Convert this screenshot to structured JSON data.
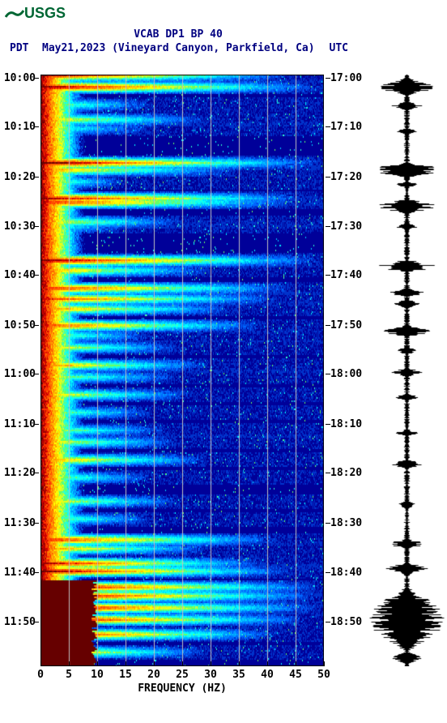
{
  "logo_text": "USGS",
  "title": "VCAB DP1 BP 40",
  "left_tz": "PDT",
  "subtitle": "May21,2023 (Vineyard Canyon, Parkfield, Ca)",
  "right_tz": "UTC",
  "x_label": "FREQUENCY (HZ)",
  "spectrogram": {
    "xlim": [
      0,
      50
    ],
    "xticks": [
      0,
      5,
      10,
      15,
      20,
      25,
      30,
      35,
      40,
      45,
      50
    ],
    "left_labels": [
      "10:00",
      "10:10",
      "10:20",
      "10:30",
      "10:40",
      "10:50",
      "11:00",
      "11:10",
      "11:20",
      "11:30",
      "11:40",
      "11:50"
    ],
    "left_positions": [
      0.005,
      0.088,
      0.172,
      0.256,
      0.339,
      0.423,
      0.506,
      0.59,
      0.673,
      0.757,
      0.841,
      0.924
    ],
    "right_labels": [
      "17:00",
      "17:10",
      "17:20",
      "17:30",
      "17:40",
      "17:50",
      "18:00",
      "18:10",
      "18:20",
      "18:30",
      "18:40",
      "18:50"
    ],
    "right_positions": [
      0.005,
      0.088,
      0.172,
      0.256,
      0.339,
      0.423,
      0.506,
      0.59,
      0.673,
      0.757,
      0.841,
      0.924
    ],
    "colormap": [
      "#660000",
      "#990000",
      "#cc0000",
      "#ff3300",
      "#ff6600",
      "#ff9900",
      "#ffcc00",
      "#ffff00",
      "#ccff33",
      "#66ff66",
      "#33ffcc",
      "#00ffff",
      "#00ccff",
      "#0099ff",
      "#0066ff",
      "#0033cc",
      "#000099",
      "#000066"
    ],
    "background_color": "#000099",
    "grid_color": "#c0c0c0",
    "event_rows": [
      {
        "y": 0.0,
        "intensity": 0.9,
        "width": 0.9
      },
      {
        "y": 0.02,
        "intensity": 0.95,
        "width": 1.0
      },
      {
        "y": 0.05,
        "intensity": 0.5,
        "width": 0.4
      },
      {
        "y": 0.075,
        "intensity": 0.6,
        "width": 0.6
      },
      {
        "y": 0.09,
        "intensity": 0.4,
        "width": 0.4
      },
      {
        "y": 0.148,
        "intensity": 0.95,
        "width": 1.0
      },
      {
        "y": 0.16,
        "intensity": 0.7,
        "width": 0.7
      },
      {
        "y": 0.18,
        "intensity": 0.5,
        "width": 0.3
      },
      {
        "y": 0.208,
        "intensity": 0.9,
        "width": 0.95
      },
      {
        "y": 0.215,
        "intensity": 0.85,
        "width": 0.9
      },
      {
        "y": 0.248,
        "intensity": 0.6,
        "width": 0.5
      },
      {
        "y": 0.256,
        "intensity": 0.4,
        "width": 0.3
      },
      {
        "y": 0.313,
        "intensity": 0.95,
        "width": 1.0
      },
      {
        "y": 0.33,
        "intensity": 0.7,
        "width": 0.6
      },
      {
        "y": 0.36,
        "intensity": 0.85,
        "width": 0.9
      },
      {
        "y": 0.378,
        "intensity": 0.8,
        "width": 0.85
      },
      {
        "y": 0.395,
        "intensity": 0.7,
        "width": 0.7
      },
      {
        "y": 0.423,
        "intensity": 0.8,
        "width": 0.8
      },
      {
        "y": 0.44,
        "intensity": 0.5,
        "width": 0.4
      },
      {
        "y": 0.46,
        "intensity": 0.6,
        "width": 0.5
      },
      {
        "y": 0.49,
        "intensity": 0.7,
        "width": 0.6
      },
      {
        "y": 0.51,
        "intensity": 0.5,
        "width": 0.5
      },
      {
        "y": 0.54,
        "intensity": 0.6,
        "width": 0.55
      },
      {
        "y": 0.57,
        "intensity": 0.5,
        "width": 0.4
      },
      {
        "y": 0.6,
        "intensity": 0.5,
        "width": 0.45
      },
      {
        "y": 0.62,
        "intensity": 0.6,
        "width": 0.5
      },
      {
        "y": 0.65,
        "intensity": 0.7,
        "width": 0.6
      },
      {
        "y": 0.68,
        "intensity": 0.5,
        "width": 0.4
      },
      {
        "y": 0.72,
        "intensity": 0.6,
        "width": 0.5
      },
      {
        "y": 0.75,
        "intensity": 0.5,
        "width": 0.4
      },
      {
        "y": 0.785,
        "intensity": 0.85,
        "width": 0.85
      },
      {
        "y": 0.8,
        "intensity": 0.7,
        "width": 0.6
      },
      {
        "y": 0.825,
        "intensity": 0.9,
        "width": 0.8
      },
      {
        "y": 0.838,
        "intensity": 0.95,
        "width": 0.9
      },
      {
        "y": 0.865,
        "intensity": 0.98,
        "width": 1.0
      },
      {
        "y": 0.88,
        "intensity": 0.98,
        "width": 1.0
      },
      {
        "y": 0.9,
        "intensity": 0.98,
        "width": 1.0
      },
      {
        "y": 0.92,
        "intensity": 0.95,
        "width": 0.95
      },
      {
        "y": 0.945,
        "intensity": 0.9,
        "width": 0.85
      },
      {
        "y": 0.975,
        "intensity": 0.7,
        "width": 0.6
      }
    ]
  },
  "waveform": {
    "color": "#000000",
    "bursts": [
      {
        "y": 0.005,
        "amp": 0.7,
        "len": 0.03
      },
      {
        "y": 0.045,
        "amp": 0.4,
        "len": 0.015
      },
      {
        "y": 0.09,
        "amp": 0.3,
        "len": 0.01
      },
      {
        "y": 0.148,
        "amp": 0.9,
        "len": 0.025
      },
      {
        "y": 0.18,
        "amp": 0.3,
        "len": 0.01
      },
      {
        "y": 0.21,
        "amp": 0.8,
        "len": 0.025
      },
      {
        "y": 0.25,
        "amp": 0.35,
        "len": 0.012
      },
      {
        "y": 0.313,
        "amp": 0.8,
        "len": 0.02
      },
      {
        "y": 0.36,
        "amp": 0.5,
        "len": 0.015
      },
      {
        "y": 0.38,
        "amp": 0.45,
        "len": 0.015
      },
      {
        "y": 0.423,
        "amp": 0.6,
        "len": 0.02
      },
      {
        "y": 0.46,
        "amp": 0.35,
        "len": 0.012
      },
      {
        "y": 0.495,
        "amp": 0.4,
        "len": 0.015
      },
      {
        "y": 0.54,
        "amp": 0.35,
        "len": 0.01
      },
      {
        "y": 0.6,
        "amp": 0.3,
        "len": 0.01
      },
      {
        "y": 0.65,
        "amp": 0.4,
        "len": 0.015
      },
      {
        "y": 0.72,
        "amp": 0.35,
        "len": 0.012
      },
      {
        "y": 0.785,
        "amp": 0.5,
        "len": 0.015
      },
      {
        "y": 0.825,
        "amp": 0.55,
        "len": 0.02
      },
      {
        "y": 0.865,
        "amp": 1.0,
        "len": 0.11
      },
      {
        "y": 0.975,
        "amp": 0.4,
        "len": 0.02
      }
    ],
    "noise_amp": 0.06
  }
}
